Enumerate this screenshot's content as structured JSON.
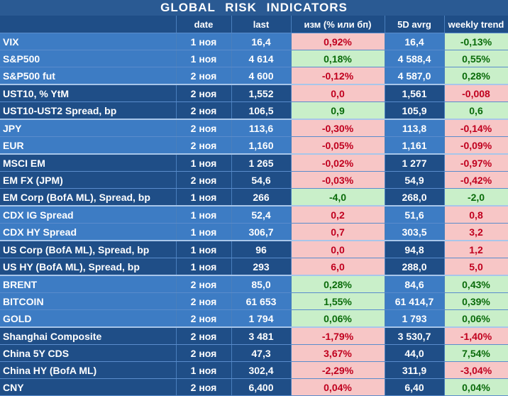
{
  "title": "GLOBAL   RISK   INDICATORS",
  "headers": [
    "",
    "date",
    "last",
    "изм (% или бп)",
    "5D avrg",
    "weekly trend"
  ],
  "rows": [
    {
      "name": "VIX",
      "date": "1 ноя",
      "last": "16,4",
      "chg": "0,92%",
      "chg_dir": "neg",
      "avg": "16,4",
      "trend": "-0,13%",
      "trend_dir": "pos",
      "group": "light"
    },
    {
      "name": "S&P500",
      "date": "1 ноя",
      "last": "4 614",
      "chg": "0,18%",
      "chg_dir": "pos",
      "avg": "4 588,4",
      "trend": "0,55%",
      "trend_dir": "pos",
      "group": "light"
    },
    {
      "name": "S&P500 fut",
      "date": "2 ноя",
      "last": "4 600",
      "chg": "-0,12%",
      "chg_dir": "neg",
      "avg": "4 587,0",
      "trend": "0,28%",
      "trend_dir": "pos",
      "group": "light",
      "sep": true
    },
    {
      "name": "UST10, % YtM",
      "date": "2 ноя",
      "last": "1,552",
      "chg": "0,0",
      "chg_dir": "neg",
      "avg": "1,561",
      "trend": "-0,008",
      "trend_dir": "neg",
      "group": "dark"
    },
    {
      "name": "UST10-UST2 Spread, bp",
      "date": "2 ноя",
      "last": "106,5",
      "chg": "0,9",
      "chg_dir": "pos",
      "avg": "105,9",
      "trend": "0,6",
      "trend_dir": "pos",
      "group": "dark",
      "sep": true
    },
    {
      "name": "JPY",
      "date": "2 ноя",
      "last": "113,6",
      "chg": "-0,30%",
      "chg_dir": "neg",
      "avg": "113,8",
      "trend": "-0,14%",
      "trend_dir": "neg",
      "group": "light"
    },
    {
      "name": "EUR",
      "date": "2 ноя",
      "last": "1,160",
      "chg": "-0,05%",
      "chg_dir": "neg",
      "avg": "1,161",
      "trend": "-0,09%",
      "trend_dir": "neg",
      "group": "light",
      "sep": true
    },
    {
      "name": "MSCI EM",
      "date": "1 ноя",
      "last": "1 265",
      "chg": "-0,02%",
      "chg_dir": "neg",
      "avg": "1 277",
      "trend": "-0,97%",
      "trend_dir": "neg",
      "group": "dark"
    },
    {
      "name": "EM FX (JPM)",
      "date": "2 ноя",
      "last": "54,6",
      "chg": "-0,03%",
      "chg_dir": "neg",
      "avg": "54,9",
      "trend": "-0,42%",
      "trend_dir": "neg",
      "group": "dark"
    },
    {
      "name": "EM Corp (BofA ML), Spread, bp",
      "date": "1 ноя",
      "last": "266",
      "chg": "-4,0",
      "chg_dir": "pos",
      "avg": "268,0",
      "trend": "-2,0",
      "trend_dir": "pos",
      "group": "dark",
      "sep": true
    },
    {
      "name": "CDX IG Spread",
      "date": "1 ноя",
      "last": "52,4",
      "chg": "0,2",
      "chg_dir": "neg",
      "avg": "51,6",
      "trend": "0,8",
      "trend_dir": "neg",
      "group": "light"
    },
    {
      "name": "CDX HY Spread",
      "date": "1 ноя",
      "last": "306,7",
      "chg": "0,7",
      "chg_dir": "neg",
      "avg": "303,5",
      "trend": "3,2",
      "trend_dir": "neg",
      "group": "light",
      "sep": true
    },
    {
      "name": "US Corp (BofA ML), Spread, bp",
      "date": "1 ноя",
      "last": "96",
      "chg": "0,0",
      "chg_dir": "neg",
      "avg": "94,8",
      "trend": "1,2",
      "trend_dir": "neg",
      "group": "dark"
    },
    {
      "name": "US HY (BofA ML), Spread, bp",
      "date": "1 ноя",
      "last": "293",
      "chg": "6,0",
      "chg_dir": "neg",
      "avg": "288,0",
      "trend": "5,0",
      "trend_dir": "neg",
      "group": "dark",
      "sep": true
    },
    {
      "name": "BRENT",
      "date": "2 ноя",
      "last": "85,0",
      "chg": "0,28%",
      "chg_dir": "pos",
      "avg": "84,6",
      "trend": "0,43%",
      "trend_dir": "pos",
      "group": "light"
    },
    {
      "name": "BITCOIN",
      "date": "2 ноя",
      "last": "61 653",
      "chg": "1,55%",
      "chg_dir": "pos",
      "avg": "61 414,7",
      "trend": "0,39%",
      "trend_dir": "pos",
      "group": "light"
    },
    {
      "name": "GOLD",
      "date": "2 ноя",
      "last": "1 794",
      "chg": "0,06%",
      "chg_dir": "pos",
      "avg": "1 793",
      "trend": "0,06%",
      "trend_dir": "pos",
      "group": "light",
      "sep": true
    },
    {
      "name": "Shanghai Composite",
      "date": "2 ноя",
      "last": "3 481",
      "chg": "-1,79%",
      "chg_dir": "neg",
      "avg": "3 530,7",
      "trend": "-1,40%",
      "trend_dir": "neg",
      "group": "dark"
    },
    {
      "name": "China 5Y CDS",
      "date": "2 ноя",
      "last": "47,3",
      "chg": "3,67%",
      "chg_dir": "neg",
      "avg": "44,0",
      "trend": "7,54%",
      "trend_dir": "pos",
      "group": "dark"
    },
    {
      "name": "China HY (BofA ML)",
      "date": "1 ноя",
      "last": "302,4",
      "chg": "-2,29%",
      "chg_dir": "neg",
      "avg": "311,9",
      "trend": "-3,04%",
      "trend_dir": "neg",
      "group": "dark"
    },
    {
      "name": "CNY",
      "date": "2 ноя",
      "last": "6,400",
      "chg": "0,04%",
      "chg_dir": "neg",
      "avg": "6,40",
      "trend": "0,04%",
      "trend_dir": "pos",
      "group": "dark"
    }
  ]
}
